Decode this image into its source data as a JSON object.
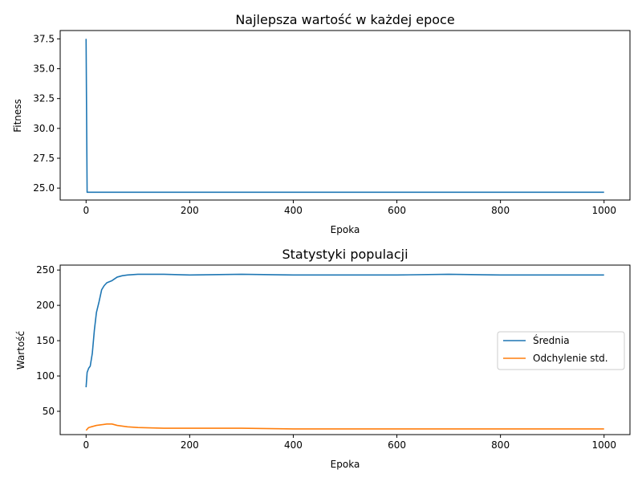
{
  "chart_data": [
    {
      "type": "line",
      "title": "Najlepsza wartość w każdej epoce",
      "xlabel": "Epoka",
      "ylabel": "Fitness",
      "xlim": [
        -50,
        1050
      ],
      "ylim": [
        24.0,
        38.2
      ],
      "xticks": [
        0,
        200,
        400,
        600,
        800,
        1000
      ],
      "yticks": [
        25.0,
        27.5,
        30.0,
        32.5,
        35.0,
        37.5
      ],
      "ytick_labels": [
        "25.0",
        "27.5",
        "30.0",
        "32.5",
        "35.0",
        "37.5"
      ],
      "grid": false,
      "series": [
        {
          "color": "#1f77b4",
          "x": [
            0,
            2,
            1000
          ],
          "y": [
            37.5,
            24.65,
            24.65
          ]
        }
      ]
    },
    {
      "type": "line",
      "title": "Statystyki populacji",
      "xlabel": "Epoka",
      "ylabel": "Wartość",
      "xlim": [
        -50,
        1050
      ],
      "ylim": [
        17,
        257
      ],
      "xticks": [
        0,
        200,
        400,
        600,
        800,
        1000
      ],
      "yticks": [
        50,
        100,
        150,
        200,
        250
      ],
      "ytick_labels": [
        "50",
        "100",
        "150",
        "200",
        "250"
      ],
      "grid": false,
      "legend": "center-right",
      "series": [
        {
          "name": "Średnia",
          "color": "#1f77b4",
          "x": [
            0,
            2,
            5,
            8,
            12,
            16,
            20,
            25,
            30,
            35,
            40,
            50,
            60,
            70,
            80,
            100,
            150,
            200,
            300,
            400,
            500,
            600,
            700,
            800,
            900,
            1000
          ],
          "y": [
            84,
            105,
            111,
            114,
            132,
            165,
            190,
            205,
            222,
            228,
            232,
            235,
            240,
            242,
            243,
            244,
            244,
            243,
            244,
            243,
            243,
            243,
            244,
            243,
            243,
            243
          ]
        },
        {
          "name": "Odchylenie std.",
          "color": "#ff7f0e",
          "x": [
            0,
            5,
            10,
            20,
            30,
            40,
            50,
            60,
            70,
            80,
            100,
            150,
            200,
            300,
            400,
            500,
            600,
            700,
            800,
            900,
            1000
          ],
          "y": [
            23,
            27,
            28,
            30,
            31,
            32,
            32,
            30,
            29,
            28,
            27,
            26,
            26,
            26,
            25,
            25,
            25,
            25,
            25,
            25,
            25
          ]
        }
      ]
    }
  ]
}
